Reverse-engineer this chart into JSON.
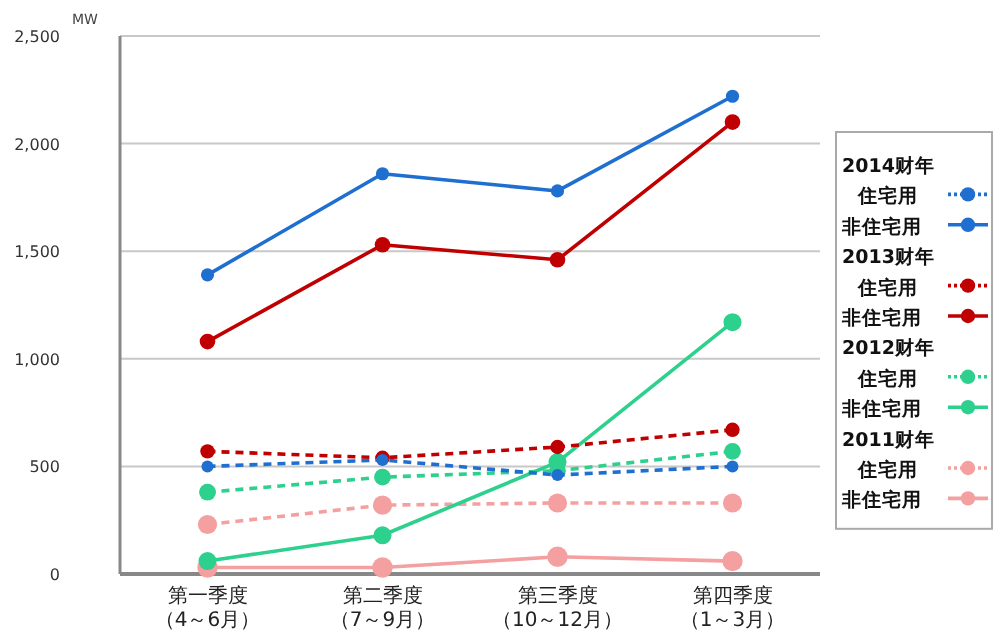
{
  "chart_data": {
    "type": "line",
    "ylabel": "MW",
    "categories": [
      "第一季度（4～6月）",
      "第二季度（7～9月）",
      "第三季度（10～12月）",
      "第四季度（1～3月）"
    ],
    "ylim": [
      0,
      2500
    ],
    "yticks": [
      {
        "value": 0,
        "label": "0"
      },
      {
        "value": 500,
        "label": "500"
      },
      {
        "value": 1000,
        "label": "1,000"
      },
      {
        "value": 1500,
        "label": "1,500"
      },
      {
        "value": 2000,
        "label": "2,000"
      },
      {
        "value": 2500,
        "label": "2,500"
      }
    ],
    "grid": "y",
    "legend": "right",
    "marker": "circle",
    "series": [
      {
        "name": "2014财年住宅用",
        "color": "#1f6fd0",
        "line_style": "dashed",
        "values": [
          500,
          530,
          460,
          500
        ]
      },
      {
        "name": "非住宅用",
        "color": "#1f6fd0",
        "line_style": "solid",
        "values": [
          1390,
          1860,
          1780,
          2220
        ]
      },
      {
        "name": "2013财年住宅用",
        "color": "#c00000",
        "line_style": "dashed",
        "values": [
          570,
          540,
          590,
          670
        ]
      },
      {
        "name": "非住宅用",
        "color": "#c00000",
        "line_style": "solid",
        "values": [
          1080,
          1530,
          1460,
          2100
        ]
      },
      {
        "name": "2012财年住宅用",
        "color": "#2dd08c",
        "line_style": "dashed",
        "values": [
          380,
          450,
          480,
          570
        ]
      },
      {
        "name": "非住宅用",
        "color": "#2dd08c",
        "line_style": "solid",
        "values": [
          60,
          180,
          520,
          1170
        ]
      },
      {
        "name": "2011财年住宅用",
        "color": "#f4a0a0",
        "line_style": "dashed",
        "values": [
          230,
          320,
          330,
          330
        ]
      },
      {
        "name": "非住宅用",
        "color": "#f4a0a0",
        "line_style": "solid",
        "values": [
          30,
          30,
          80,
          60
        ]
      }
    ]
  }
}
